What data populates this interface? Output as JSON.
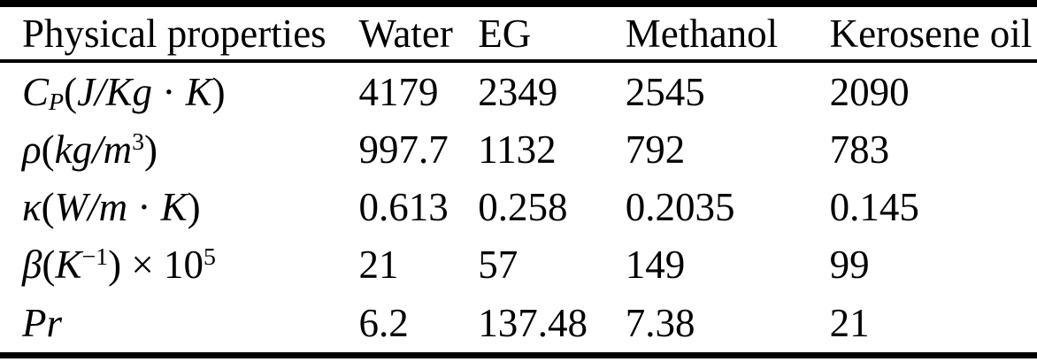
{
  "table": {
    "columns": [
      "Physical properties",
      "Water",
      "EG",
      "Methanol",
      "Kerosene oil"
    ],
    "rows": [
      {
        "property": "C_P (J/Kg · K)",
        "label_segments": [
          {
            "t": "C",
            "s": "i"
          },
          {
            "t": "P",
            "s": "sub"
          },
          {
            "t": "(",
            "s": "r"
          },
          {
            "t": "J/Kg",
            "s": "i"
          },
          {
            "t": " · ",
            "s": "r"
          },
          {
            "t": "K",
            "s": "i"
          },
          {
            "t": ")",
            "s": "r"
          }
        ],
        "values": [
          "4179",
          "2349",
          "2545",
          "2090"
        ]
      },
      {
        "property": "ρ (kg/m^3)",
        "label_segments": [
          {
            "t": "ρ",
            "s": "i"
          },
          {
            "t": "(",
            "s": "r"
          },
          {
            "t": "kg/m",
            "s": "i"
          },
          {
            "t": "3",
            "s": "sup"
          },
          {
            "t": ")",
            "s": "r"
          }
        ],
        "values": [
          "997.7",
          "1132",
          "792",
          "783"
        ]
      },
      {
        "property": "κ (W/m · K)",
        "label_segments": [
          {
            "t": "κ",
            "s": "i"
          },
          {
            "t": "(",
            "s": "r"
          },
          {
            "t": "W/m",
            "s": "i"
          },
          {
            "t": " · ",
            "s": "r"
          },
          {
            "t": "K",
            "s": "i"
          },
          {
            "t": ")",
            "s": "r"
          }
        ],
        "values": [
          "0.613",
          "0.258",
          "0.2035",
          "0.145"
        ]
      },
      {
        "property": "β (K^−1) × 10^5",
        "label_segments": [
          {
            "t": "β",
            "s": "i"
          },
          {
            "t": "(",
            "s": "r"
          },
          {
            "t": "K",
            "s": "i"
          },
          {
            "t": "−1",
            "s": "sup"
          },
          {
            "t": ") × 10",
            "s": "r"
          },
          {
            "t": "5",
            "s": "sup"
          }
        ],
        "values": [
          "21",
          "57",
          "149",
          "99"
        ]
      },
      {
        "property": "Pr",
        "label_segments": [
          {
            "t": "Pr",
            "s": "i"
          }
        ],
        "values": [
          "6.2",
          "137.48",
          "7.38",
          "21"
        ]
      }
    ]
  },
  "colors": {
    "text": "#000000",
    "background": "#ffffff",
    "rule": "#000000"
  }
}
